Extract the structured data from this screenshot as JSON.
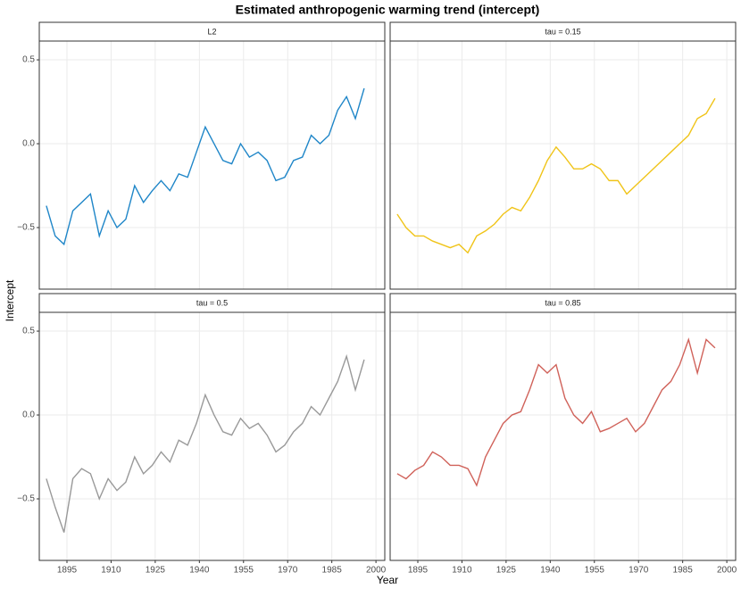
{
  "chart_data": {
    "type": "line",
    "title": "Estimated anthropogenic warming trend (intercept)",
    "x_label": "Year",
    "y_label": "Intercept",
    "facets": true,
    "grid": true,
    "x": [
      1888,
      1891,
      1894,
      1897,
      1900,
      1903,
      1906,
      1909,
      1912,
      1915,
      1918,
      1921,
      1924,
      1927,
      1930,
      1933,
      1936,
      1939,
      1942,
      1945,
      1948,
      1951,
      1954,
      1957,
      1960,
      1963,
      1966,
      1969,
      1972,
      1975,
      1978,
      1981,
      1984,
      1987,
      1990,
      1993,
      1996
    ],
    "xlim": [
      1885.6,
      2003
    ],
    "ylim": [
      -0.867,
      0.612
    ],
    "xticks": [
      1895,
      1910,
      1925,
      1940,
      1955,
      1970,
      1985,
      2000
    ],
    "yticks": [
      {
        "value": -0.5,
        "label": "−0.5"
      },
      {
        "value": 0,
        "label": "0.0"
      },
      0.5
    ],
    "series": [
      {
        "name": "L2",
        "color": "#1f86c8",
        "values": [
          -0.37,
          -0.55,
          -0.6,
          -0.4,
          -0.35,
          -0.3,
          -0.55,
          -0.4,
          -0.5,
          -0.45,
          -0.25,
          -0.35,
          -0.28,
          -0.22,
          -0.28,
          -0.18,
          -0.2,
          -0.05,
          0.1,
          0.0,
          -0.1,
          -0.12,
          0.0,
          -0.08,
          -0.05,
          -0.1,
          -0.22,
          -0.2,
          -0.1,
          -0.08,
          0.05,
          0.0,
          0.05,
          0.2,
          0.28,
          0.15,
          0.33
        ]
      },
      {
        "name": "tau = 0.15",
        "color": "#f0c419",
        "values": [
          -0.42,
          -0.5,
          -0.55,
          -0.55,
          -0.58,
          -0.6,
          -0.62,
          -0.6,
          -0.65,
          -0.55,
          -0.52,
          -0.48,
          -0.42,
          -0.38,
          -0.4,
          -0.32,
          -0.22,
          -0.1,
          -0.02,
          -0.08,
          -0.15,
          -0.15,
          -0.12,
          -0.15,
          -0.22,
          -0.22,
          -0.3,
          -0.25,
          -0.2,
          -0.15,
          -0.1,
          -0.05,
          0.0,
          0.05,
          0.15,
          0.18,
          0.27
        ]
      },
      {
        "name": "tau = 0.5",
        "color": "#999999",
        "values": [
          -0.38,
          -0.55,
          -0.7,
          -0.38,
          -0.32,
          -0.35,
          -0.5,
          -0.38,
          -0.45,
          -0.4,
          -0.25,
          -0.35,
          -0.3,
          -0.22,
          -0.28,
          -0.15,
          -0.18,
          -0.05,
          0.12,
          0.0,
          -0.1,
          -0.12,
          -0.02,
          -0.08,
          -0.05,
          -0.12,
          -0.22,
          -0.18,
          -0.1,
          -0.05,
          0.05,
          0.0,
          0.1,
          0.2,
          0.35,
          0.15,
          0.33
        ]
      },
      {
        "name": "tau = 0.85",
        "color": "#d0625a",
        "values": [
          -0.35,
          -0.38,
          -0.33,
          -0.3,
          -0.22,
          -0.25,
          -0.3,
          -0.3,
          -0.32,
          -0.42,
          -0.25,
          -0.15,
          -0.05,
          0.0,
          0.02,
          0.15,
          0.3,
          0.25,
          0.3,
          0.1,
          0.0,
          -0.05,
          0.02,
          -0.1,
          -0.08,
          -0.05,
          -0.02,
          -0.1,
          -0.05,
          0.05,
          0.15,
          0.2,
          0.3,
          0.45,
          0.25,
          0.45,
          0.4
        ]
      }
    ]
  }
}
